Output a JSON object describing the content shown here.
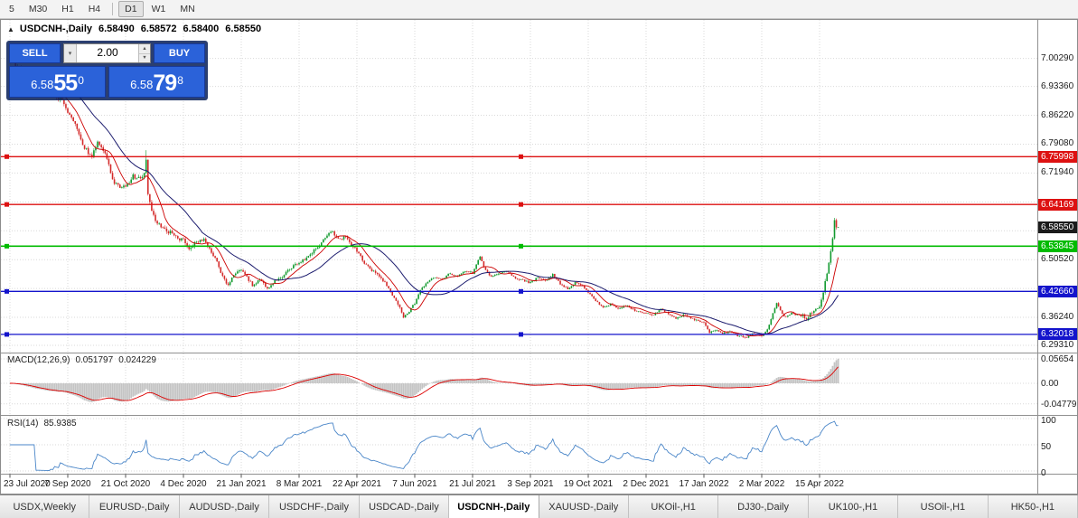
{
  "toolbar": {
    "timeframes": [
      {
        "label": "5",
        "active": false
      },
      {
        "label": "M30",
        "active": false
      },
      {
        "label": "H1",
        "active": false
      },
      {
        "label": "H4",
        "active": false
      },
      {
        "label": "D1",
        "active": true
      },
      {
        "label": "W1",
        "active": false
      },
      {
        "label": "MN",
        "active": false
      }
    ]
  },
  "chart": {
    "header": {
      "collapse_icon": "▲",
      "symbol": "USDCNH-,Daily",
      "ohlc": [
        "6.58490",
        "6.58572",
        "6.58400",
        "6.58550"
      ]
    },
    "trade_panel": {
      "sell_label": "SELL",
      "buy_label": "BUY",
      "volume": "2.00",
      "sell_price": {
        "base": "6.58",
        "pips": "55",
        "frac": "0"
      },
      "buy_price": {
        "base": "6.58",
        "pips": "79",
        "frac": "8"
      }
    },
    "y_axis": {
      "price_max": 7.0938,
      "price_min": 6.2753,
      "plain_labels": [
        "7.00290",
        "6.93360",
        "6.86220",
        "6.79080",
        "6.71940",
        "6.50520",
        "6.36240",
        "6.29310"
      ],
      "grid_prices": [
        7.0029,
        6.9336,
        6.8622,
        6.7908,
        6.7194,
        6.648,
        6.5766,
        6.5052,
        6.4338,
        6.3624,
        6.2931
      ],
      "levels": [
        {
          "price": 6.75998,
          "label": "6.75998",
          "color": "#dd1111",
          "type": "hline"
        },
        {
          "price": 6.64169,
          "label": "6.64169",
          "color": "#dd1111",
          "type": "hline"
        },
        {
          "price": 6.5855,
          "label": "6.58550",
          "color": "#1b1b1b",
          "type": "current"
        },
        {
          "price": 6.53845,
          "label": "6.53845",
          "color": "#00bb00",
          "type": "hline"
        },
        {
          "price": 6.4266,
          "label": "6.42660",
          "color": "#1414cc",
          "type": "hline"
        },
        {
          "price": 6.32018,
          "label": "6.32018",
          "color": "#1414cc",
          "type": "hline"
        }
      ]
    },
    "x_axis": {
      "tick_labels": [
        "23 Jul 2020",
        "7 Sep 2020",
        "21 Oct 2020",
        "4 Dec 2020",
        "21 Jan 2021",
        "8 Mar 2021",
        "22 Apr 2021",
        "7 Jun 2021",
        "21 Jul 2021",
        "3 Sep 2021",
        "19 Oct 2021",
        "2 Dec 2021",
        "17 Jan 2022",
        "2 Mar 2022",
        "15 Apr 2022"
      ]
    },
    "macd": {
      "name": "MACD(12,26,9)",
      "value": "0.051797",
      "signal_value": "0.024229",
      "axis_labels": [
        "0.05654",
        "0.00",
        "-0.04779"
      ]
    },
    "rsi": {
      "name": "RSI(14)",
      "value": "85.9385",
      "axis_labels": [
        "100",
        "50",
        "0"
      ]
    }
  },
  "chart_data": {
    "type": "candlestick",
    "symbol": "USDCNH",
    "timeframe": "Daily",
    "x_range": [
      "23 Jul 2020",
      "15 Apr 2022"
    ],
    "y_range": [
      6.2753,
      7.0938
    ],
    "bars_per_tick": 31,
    "last_bar_ohlc": {
      "open": 6.5849,
      "high": 6.58572,
      "low": 6.584,
      "close": 6.5855
    },
    "indicators": [
      {
        "name": "MACD",
        "params": [
          12,
          26,
          9
        ],
        "last_values": [
          0.051797,
          0.024229
        ],
        "axis": [
          0.05654,
          0.0,
          -0.04779
        ]
      },
      {
        "name": "RSI",
        "params": [
          14
        ],
        "last_value": 85.9385,
        "axis": [
          100,
          50,
          0
        ]
      }
    ],
    "anchors": [
      [
        0,
        6.998
      ],
      [
        5,
        6.98
      ],
      [
        10,
        6.962
      ],
      [
        16,
        6.94
      ],
      [
        22,
        6.918
      ],
      [
        28,
        6.898
      ],
      [
        31,
        6.868
      ],
      [
        35,
        6.838
      ],
      [
        40,
        6.782
      ],
      [
        44,
        6.76
      ],
      [
        47,
        6.792
      ],
      [
        50,
        6.775
      ],
      [
        53,
        6.745
      ],
      [
        55,
        6.7
      ],
      [
        58,
        6.688
      ],
      [
        62,
        6.682
      ],
      [
        66,
        6.712
      ],
      [
        70,
        6.706
      ],
      [
        72,
        6.718
      ],
      [
        73,
        6.752
      ],
      [
        74,
        6.672
      ],
      [
        76,
        6.625
      ],
      [
        78,
        6.602
      ],
      [
        82,
        6.582
      ],
      [
        86,
        6.572
      ],
      [
        90,
        6.56
      ],
      [
        93,
        6.552
      ],
      [
        96,
        6.532
      ],
      [
        100,
        6.548
      ],
      [
        104,
        6.556
      ],
      [
        108,
        6.524
      ],
      [
        111,
        6.502
      ],
      [
        114,
        6.462
      ],
      [
        117,
        6.442
      ],
      [
        120,
        6.468
      ],
      [
        124,
        6.478
      ],
      [
        127,
        6.462
      ],
      [
        130,
        6.442
      ],
      [
        134,
        6.456
      ],
      [
        138,
        6.432
      ],
      [
        142,
        6.452
      ],
      [
        146,
        6.462
      ],
      [
        150,
        6.482
      ],
      [
        155,
        6.498
      ],
      [
        159,
        6.51
      ],
      [
        163,
        6.528
      ],
      [
        167,
        6.545
      ],
      [
        170,
        6.568
      ],
      [
        173,
        6.572
      ],
      [
        176,
        6.555
      ],
      [
        180,
        6.562
      ],
      [
        183,
        6.542
      ],
      [
        186,
        6.528
      ],
      [
        190,
        6.495
      ],
      [
        194,
        6.478
      ],
      [
        198,
        6.462
      ],
      [
        202,
        6.442
      ],
      [
        206,
        6.412
      ],
      [
        209,
        6.385
      ],
      [
        211,
        6.362
      ],
      [
        214,
        6.378
      ],
      [
        217,
        6.398
      ],
      [
        220,
        6.428
      ],
      [
        224,
        6.452
      ],
      [
        228,
        6.462
      ],
      [
        232,
        6.458
      ],
      [
        236,
        6.472
      ],
      [
        240,
        6.462
      ],
      [
        244,
        6.478
      ],
      [
        248,
        6.472
      ],
      [
        252,
        6.512
      ],
      [
        254,
        6.488
      ],
      [
        258,
        6.462
      ],
      [
        262,
        6.472
      ],
      [
        266,
        6.478
      ],
      [
        270,
        6.462
      ],
      [
        274,
        6.455
      ],
      [
        279,
        6.448
      ],
      [
        283,
        6.462
      ],
      [
        287,
        6.452
      ],
      [
        291,
        6.468
      ],
      [
        295,
        6.445
      ],
      [
        299,
        6.432
      ],
      [
        303,
        6.448
      ],
      [
        307,
        6.438
      ],
      [
        310,
        6.425
      ],
      [
        314,
        6.402
      ],
      [
        318,
        6.388
      ],
      [
        322,
        6.395
      ],
      [
        326,
        6.385
      ],
      [
        330,
        6.392
      ],
      [
        334,
        6.382
      ],
      [
        338,
        6.375
      ],
      [
        341,
        6.372
      ],
      [
        345,
        6.368
      ],
      [
        349,
        6.382
      ],
      [
        353,
        6.372
      ],
      [
        357,
        6.358
      ],
      [
        361,
        6.368
      ],
      [
        365,
        6.362
      ],
      [
        369,
        6.352
      ],
      [
        372,
        6.348
      ],
      [
        375,
        6.325
      ],
      [
        378,
        6.332
      ],
      [
        382,
        6.322
      ],
      [
        386,
        6.328
      ],
      [
        390,
        6.318
      ],
      [
        394,
        6.312
      ],
      [
        398,
        6.322
      ],
      [
        403,
        6.318
      ],
      [
        406,
        6.332
      ],
      [
        409,
        6.372
      ],
      [
        411,
        6.398
      ],
      [
        413,
        6.378
      ],
      [
        416,
        6.362
      ],
      [
        419,
        6.372
      ],
      [
        423,
        6.368
      ],
      [
        427,
        6.362
      ],
      [
        430,
        6.372
      ],
      [
        434,
        6.388
      ],
      [
        436,
        6.425
      ],
      [
        438,
        6.472
      ],
      [
        440,
        6.528
      ],
      [
        441,
        6.558
      ],
      [
        442,
        6.603
      ],
      [
        443,
        6.5849
      ],
      [
        444,
        6.5855
      ]
    ]
  },
  "tabs": [
    {
      "label": "USDX,Weekly",
      "active": false
    },
    {
      "label": "EURUSD-,Daily",
      "active": false
    },
    {
      "label": "AUDUSD-,Daily",
      "active": false
    },
    {
      "label": "USDCHF-,Daily",
      "active": false
    },
    {
      "label": "USDCAD-,Daily",
      "active": false
    },
    {
      "label": "USDCNH-,Daily",
      "active": true
    },
    {
      "label": "XAUUSD-,Daily",
      "active": false
    },
    {
      "label": "UKOil-,H1",
      "active": false
    },
    {
      "label": "DJ30-,Daily",
      "active": false
    },
    {
      "label": "UK100-,H1",
      "active": false
    },
    {
      "label": "USOil-,H1",
      "active": false
    },
    {
      "label": "HK50-,H1",
      "active": false
    }
  ],
  "colors": {
    "candle_up": "#119a2e",
    "candle_down": "#d42a2a",
    "ma_fast": "#cc0000",
    "ma_slow": "#1c1c6e",
    "macd_hist": "#c4c4c4",
    "macd_signal": "#dd0000",
    "rsi_line": "#4a86c8",
    "grid": "#d9d9d9",
    "separator": "#909090",
    "accent_blue": "#2b62d9"
  }
}
